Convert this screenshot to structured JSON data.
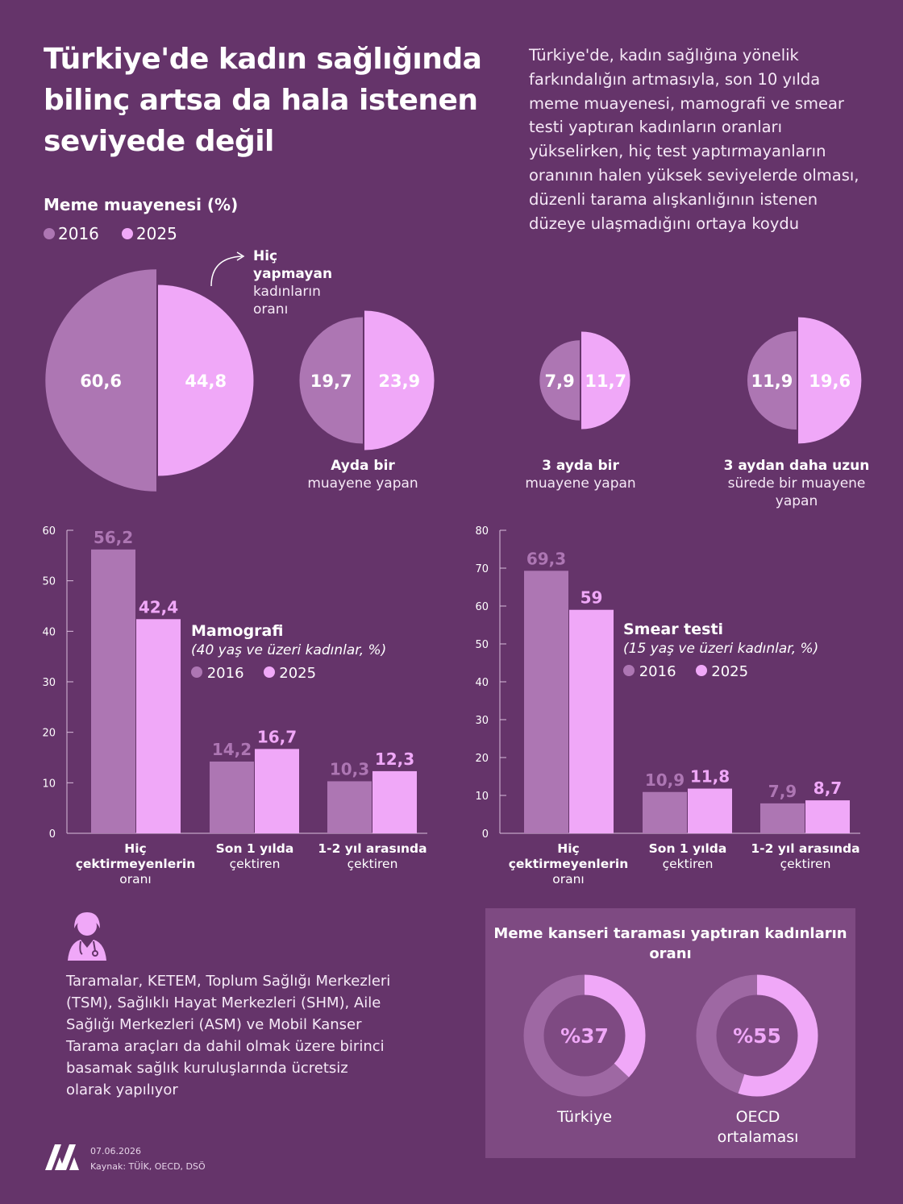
{
  "title": "Türkiye'de kadın sağlığında bilinç artsa da hala istenen seviyede değil",
  "intro": "Türkiye'de, kadın sağlığına yönelik farkındalığın artmasıyla, son 10 yılda meme muayenesi, mamografi ve smear testi yaptıran kadınların oranları yükselirken, hiç test yaptırmayanların oranının halen yüksek seviyelerde olması, düzenli tarama alışkanlığının istenen düzeye ulaşmadığını ortaya koydu",
  "colors": {
    "background": "#65346a",
    "y2016": "#ad76b3",
    "y2025": "#f0a8f8",
    "panel": "#7e4a82"
  },
  "breast_exam": {
    "heading": "Meme muayenesi (%)",
    "legend": [
      "2016",
      "2025"
    ],
    "annotation_bold": "Hiç yapmayan",
    "annotation_rest": "kadınların oranı"
  },
  "bottom_text": "Taramalar, KETEM, Toplum Sağlığı Merkezleri (TSM), Sağlıklı Hayat Merkezleri (SHM), Aile Sağlığı Merkezleri (ASM) ve Mobil Kanser Tarama araçları da dahil olmak üzere birinci basamak sağlık kuruluşlarında ücretsiz olarak yapılıyor",
  "screening": {
    "title": "Meme kanseri taraması yaptıran kadınların oranı",
    "items": [
      {
        "label": "Türkiye",
        "display": "%37",
        "value": 37
      },
      {
        "label": "OECD ortalaması",
        "display": "%55",
        "value": 55
      }
    ]
  },
  "footer": {
    "date": "07.06.2026",
    "source": "Kaynak: TÜİK, OECD, DSÖ",
    "logo_text": "AA"
  },
  "chart_data": [
    {
      "type": "pie",
      "subtype": "split-semicircles",
      "title": "Meme muayenesi (%)",
      "series_names": [
        "2016",
        "2025"
      ],
      "categories": [
        {
          "bold": "Hiç yapmayan",
          "rest": "kadınların oranı",
          "v2016": 60.6,
          "v2025": 44.8,
          "l2016": "60,6",
          "l2025": "44,8"
        },
        {
          "bold": "Ayda bir",
          "rest": "muayene yapan",
          "v2016": 19.7,
          "v2025": 23.9,
          "l2016": "19,7",
          "l2025": "23,9"
        },
        {
          "bold": "3 ayda bir",
          "rest": "muayene yapan",
          "v2016": 7.9,
          "v2025": 11.7,
          "l2016": "7,9",
          "l2025": "11,7"
        },
        {
          "bold": "3 aydan daha uzun",
          "rest": "sürede bir muayene yapan",
          "v2016": 11.9,
          "v2025": 19.6,
          "l2016": "11,9",
          "l2025": "19,6"
        }
      ]
    },
    {
      "type": "bar",
      "title": "Mamografi",
      "subtitle": "(40 yaş ve üzeri kadınlar, %)",
      "ylim": [
        0,
        60
      ],
      "yticks": [
        0,
        10,
        20,
        30,
        40,
        50,
        60
      ],
      "categories": [
        {
          "bold": "Hiç çektirmeyenlerin",
          "rest": "oranı"
        },
        {
          "bold": "Son 1 yılda",
          "rest": "çektiren"
        },
        {
          "bold": "1-2 yıl arasında",
          "rest": "çektiren"
        }
      ],
      "series": [
        {
          "name": "2016",
          "values": [
            56.2,
            14.2,
            10.3
          ],
          "labels": [
            "56,2",
            "14,2",
            "10,3"
          ]
        },
        {
          "name": "2025",
          "values": [
            42.4,
            16.7,
            12.3
          ],
          "labels": [
            "42,4",
            "16,7",
            "12,3"
          ]
        }
      ]
    },
    {
      "type": "bar",
      "title": "Smear testi",
      "subtitle": "(15 yaş ve üzeri kadınlar, %)",
      "ylim": [
        0,
        80
      ],
      "yticks": [
        0,
        10,
        20,
        30,
        40,
        50,
        60,
        70,
        80
      ],
      "categories": [
        {
          "bold": "Hiç çektirmeyenlerin",
          "rest": "oranı"
        },
        {
          "bold": "Son 1 yılda",
          "rest": "çektiren"
        },
        {
          "bold": "1-2 yıl arasında",
          "rest": "çektiren"
        }
      ],
      "series": [
        {
          "name": "2016",
          "values": [
            69.3,
            10.9,
            7.9
          ],
          "labels": [
            "69,3",
            "10,9",
            "7,9"
          ]
        },
        {
          "name": "2025",
          "values": [
            59,
            11.8,
            8.7
          ],
          "labels": [
            "59",
            "11,8",
            "8,7"
          ]
        }
      ]
    }
  ]
}
